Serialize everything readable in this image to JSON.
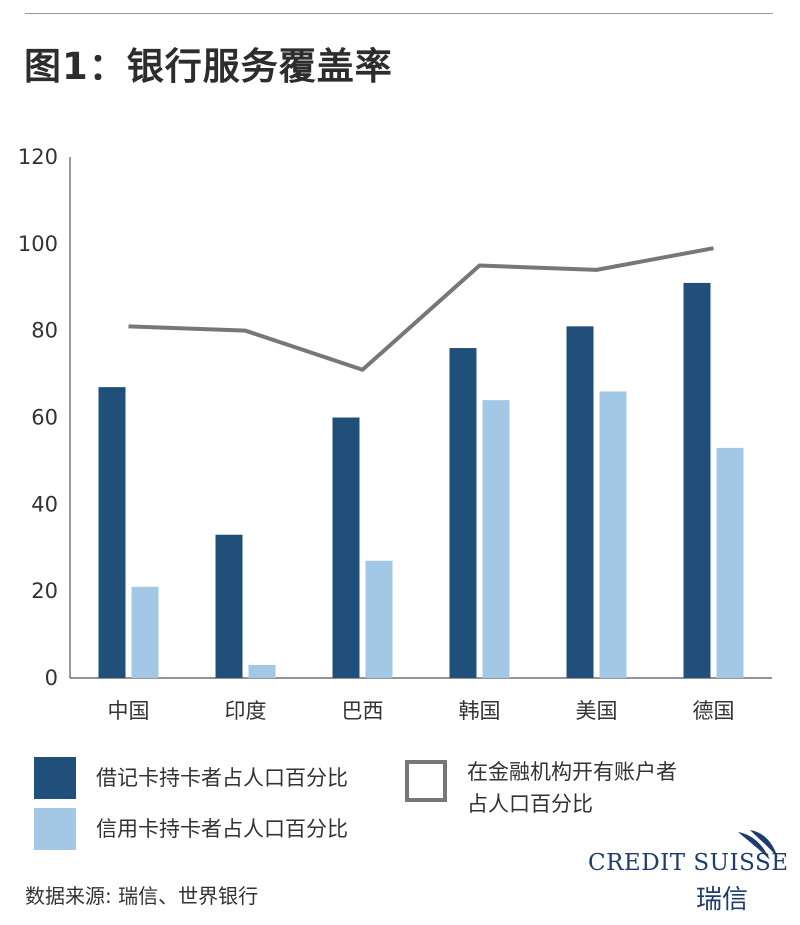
{
  "title": "图1：银行服务覆盖率",
  "source": "数据来源: 瑞信、世界银行",
  "logo": {
    "name": "Credit Suisse",
    "sub": "瑞信"
  },
  "legend": {
    "debit": "借记卡持卡者占人口百分比",
    "credit": "信用卡持卡者占人口百分比",
    "account_line1": "在金融机构开有账户者",
    "account_line2": "占人口百分比"
  },
  "colors": {
    "debit": "#20507a",
    "credit": "#a3c8e6",
    "account": "#777777"
  },
  "chart_data": {
    "type": "bar",
    "title": "图1：银行服务覆盖率",
    "categories": [
      "中国",
      "印度",
      "巴西",
      "韩国",
      "美国",
      "德国"
    ],
    "series": [
      {
        "name": "借记卡持卡者占人口百分比",
        "type": "bar",
        "values": [
          67,
          33,
          60,
          76,
          81,
          91
        ]
      },
      {
        "name": "信用卡持卡者占人口百分比",
        "type": "bar",
        "values": [
          21,
          3,
          27,
          64,
          66,
          53
        ]
      },
      {
        "name": "在金融机构开有账户者占人口百分比",
        "type": "line",
        "values": [
          81,
          80,
          71,
          95,
          94,
          99
        ]
      }
    ],
    "ylim": [
      0,
      120
    ],
    "yticks": [
      0,
      20,
      40,
      60,
      80,
      100,
      120
    ],
    "grid": false,
    "legend_position": "bottom"
  }
}
